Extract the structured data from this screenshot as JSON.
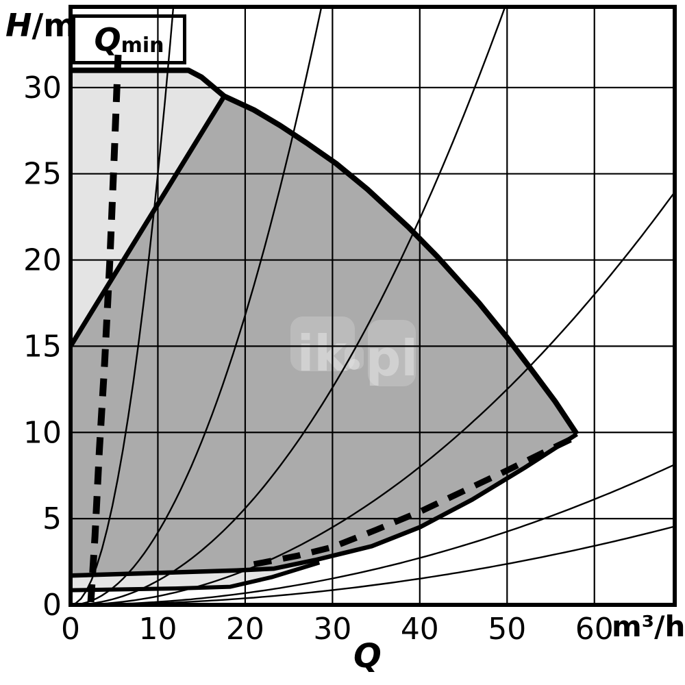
{
  "labels": {
    "y_symbol": "H",
    "y_unit": "/m",
    "x_symbol": "Q",
    "x_unit": "m³/h"
  },
  "qmin": {
    "symbol": "Q",
    "subscript": "min"
  },
  "watermark": {
    "text": "ik.pl",
    "text_left": "ik",
    "text_right": "pl"
  },
  "chart_data": {
    "type": "area",
    "xlabel": "Q",
    "x_unit": "m³/h",
    "ylabel": "H/m",
    "xlim": [
      0,
      69.2
    ],
    "ylim": [
      0,
      34.68
    ],
    "x_ticks": [
      0,
      10,
      20,
      30,
      40,
      50,
      60
    ],
    "y_ticks": [
      0,
      5,
      10,
      15,
      20,
      25,
      30
    ],
    "grid": true,
    "legend": "none",
    "colors": {
      "line": "#000000",
      "grid": "#000000",
      "light_fill": "#e4e4e4",
      "dark_fill": "#ababab",
      "qmin_box_fill": "#fbf9ec",
      "background": "#ffffff"
    },
    "regions": {
      "outer_light_envelope": {
        "fill": "light",
        "points": [
          [
            0,
            31
          ],
          [
            13.5,
            31
          ],
          [
            15,
            30.6
          ],
          [
            16.3,
            30.05
          ],
          [
            17.6,
            29.5
          ],
          [
            0,
            15
          ]
        ]
      },
      "inner_dark_envelope": {
        "fill": "dark",
        "points": [
          [
            0,
            15
          ],
          [
            17.6,
            29.5
          ],
          [
            21,
            28.7
          ],
          [
            24,
            27.8
          ],
          [
            27,
            26.8
          ],
          [
            30.4,
            25.6
          ],
          [
            34,
            24.1
          ],
          [
            38.7,
            21.9
          ],
          [
            42,
            20.2
          ],
          [
            46.8,
            17.5
          ],
          [
            50,
            15.5
          ],
          [
            53,
            13.5
          ],
          [
            55.5,
            11.8
          ],
          [
            58,
            9.9
          ],
          [
            52,
            7.95
          ],
          [
            46,
            6.1
          ],
          [
            40,
            4.5
          ],
          [
            34.5,
            3.4
          ],
          [
            28,
            2.6
          ],
          [
            23.3,
            2.1
          ],
          [
            19,
            2.0
          ],
          [
            10,
            1.85
          ],
          [
            0,
            1.7
          ]
        ]
      },
      "bottom_light_strip": {
        "fill": "light",
        "points": [
          [
            0,
            1.7
          ],
          [
            10,
            1.85
          ],
          [
            19,
            2.0
          ],
          [
            23.3,
            2.1
          ],
          [
            28,
            2.6
          ],
          [
            28.5,
            2.45
          ],
          [
            23,
            1.6
          ],
          [
            18.3,
            1.05
          ],
          [
            12,
            0.95
          ],
          [
            0,
            0.85
          ]
        ]
      }
    },
    "boundary_lines": {
      "top_envelope": {
        "width": 8,
        "points": [
          [
            0,
            31
          ],
          [
            13.5,
            31
          ],
          [
            15,
            30.6
          ],
          [
            16.3,
            30.05
          ],
          [
            17.6,
            29.5
          ],
          [
            21,
            28.7
          ],
          [
            24,
            27.8
          ],
          [
            27,
            26.8
          ],
          [
            30.4,
            25.6
          ],
          [
            34,
            24.1
          ],
          [
            38.7,
            21.9
          ],
          [
            42,
            20.2
          ],
          [
            46.8,
            17.5
          ],
          [
            50,
            15.5
          ],
          [
            53,
            13.5
          ],
          [
            55.5,
            11.8
          ],
          [
            58,
            9.9
          ]
        ]
      },
      "left_min_limit": {
        "width": 7,
        "points": [
          [
            0,
            15
          ],
          [
            17.6,
            29.5
          ]
        ]
      },
      "bottom_dark_limit": {
        "width": 6.5,
        "points": [
          [
            0,
            1.7
          ],
          [
            10,
            1.85
          ],
          [
            19,
            2.0
          ],
          [
            23.3,
            2.1
          ],
          [
            28,
            2.6
          ],
          [
            34.5,
            3.4
          ],
          [
            40,
            4.5
          ],
          [
            46,
            6.1
          ],
          [
            52,
            7.95
          ],
          [
            58,
            9.9
          ]
        ]
      },
      "strip_bottom_limit": {
        "width": 6,
        "points": [
          [
            0,
            0.85
          ],
          [
            12,
            0.95
          ],
          [
            18.3,
            1.05
          ],
          [
            23,
            1.6
          ],
          [
            28.5,
            2.45
          ]
        ]
      }
    },
    "dashed_lines": {
      "qmin_curve": {
        "width": 10,
        "dash": [
          26,
          17
        ],
        "points": [
          [
            5.45,
            31.9
          ],
          [
            5.0,
            26
          ],
          [
            4.5,
            20
          ],
          [
            3.9,
            14
          ],
          [
            3.3,
            9
          ],
          [
            2.8,
            4
          ],
          [
            2.4,
            0.8
          ],
          [
            2.3,
            0
          ]
        ]
      },
      "bottom_right_limit": {
        "width": 9,
        "dash": [
          26,
          17
        ],
        "points": [
          [
            21,
            2.35
          ],
          [
            26,
            2.85
          ],
          [
            30,
            3.35
          ],
          [
            35,
            4.35
          ],
          [
            40,
            5.4
          ],
          [
            45,
            6.6
          ],
          [
            50,
            7.8
          ],
          [
            54,
            8.8
          ],
          [
            57.3,
            9.6
          ]
        ]
      }
    },
    "system_curves": {
      "model": "H = k * Q^2",
      "k_values": [
        0.25,
        0.042,
        0.014,
        0.005,
        0.0017,
        0.00095
      ],
      "width": 2.4
    }
  }
}
